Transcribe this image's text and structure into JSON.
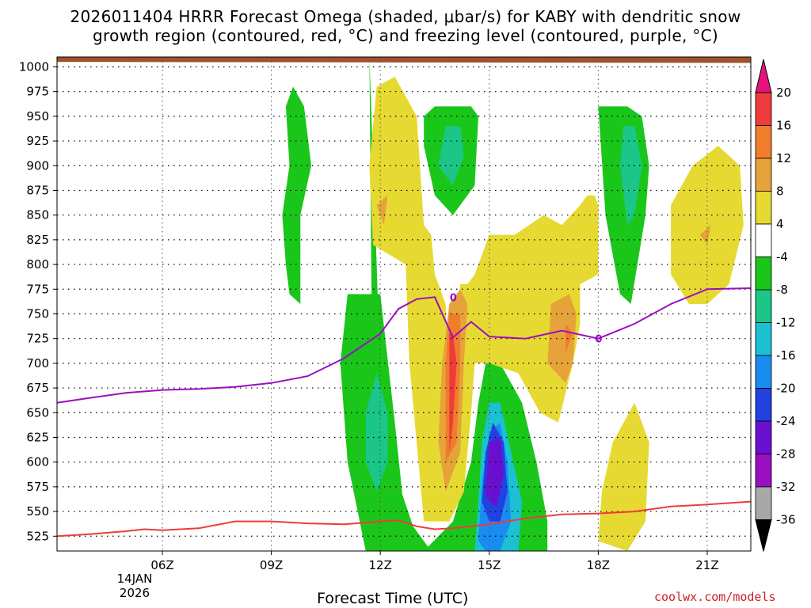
{
  "title_line1": "2026011404 HRRR Forecast Omega (shaded, μbar/s) for KABY with dendritic snow",
  "title_line2": "growth region (contoured, red, °C) and freezing level (contoured, purple, °C)",
  "xlabel": "Forecast Time (UTC)",
  "credit": "coolwx.com/models",
  "date_day": "14JAN",
  "date_year": "2026",
  "chart_data": {
    "type": "contour",
    "x_unit": "forecast hour UTC",
    "x_range": [
      3.1,
      22.2
    ],
    "y_range": [
      1010,
      510
    ],
    "x_ticks": [
      {
        "value": 6,
        "label": "06Z"
      },
      {
        "value": 9,
        "label": "09Z"
      },
      {
        "value": 12,
        "label": "12Z"
      },
      {
        "value": 15,
        "label": "15Z"
      },
      {
        "value": 18,
        "label": "18Z"
      },
      {
        "value": 21,
        "label": "21Z"
      }
    ],
    "y_ticks": [
      525,
      550,
      575,
      600,
      625,
      650,
      675,
      700,
      725,
      750,
      775,
      800,
      825,
      850,
      875,
      900,
      925,
      950,
      975,
      1000
    ],
    "colorbar": {
      "levels": [
        20,
        16,
        12,
        8,
        4,
        -4,
        -8,
        -12,
        -16,
        -20,
        -24,
        -28,
        -32,
        -36
      ],
      "bins": [
        {
          "from": 20,
          "to": null,
          "color": "#e8127d"
        },
        {
          "from": 16,
          "to": 20,
          "color": "#ef3b3b"
        },
        {
          "from": 12,
          "to": 16,
          "color": "#ef7d2b"
        },
        {
          "from": 8,
          "to": 12,
          "color": "#e6a33a"
        },
        {
          "from": 4,
          "to": 8,
          "color": "#e6d932"
        },
        {
          "from": -4,
          "to": 4,
          "color": "#ffffff"
        },
        {
          "from": -8,
          "to": -4,
          "color": "#1bc61b"
        },
        {
          "from": -12,
          "to": -8,
          "color": "#1bc688"
        },
        {
          "from": -16,
          "to": -12,
          "color": "#1bc1d2"
        },
        {
          "from": -20,
          "to": -16,
          "color": "#1a8cf0"
        },
        {
          "from": -24,
          "to": -20,
          "color": "#2141e0"
        },
        {
          "from": -28,
          "to": -24,
          "color": "#6a0fcf"
        },
        {
          "from": -32,
          "to": -28,
          "color": "#9a0fc0"
        },
        {
          "from": -36,
          "to": -32,
          "color": "#a8a8a8"
        },
        {
          "from": null,
          "to": -36,
          "color": "#000000"
        }
      ]
    },
    "omega_regions": [
      {
        "color": "#1bc61b",
        "points": [
          [
            11.7,
            1010
          ],
          [
            11.9,
            800
          ],
          [
            12.0,
            690
          ],
          [
            12.4,
            590
          ],
          [
            12.9,
            535
          ],
          [
            13.4,
            510
          ],
          [
            11.6,
            510
          ],
          [
            11.1,
            600
          ],
          [
            10.9,
            700
          ],
          [
            11.1,
            770
          ],
          [
            12.0,
            770
          ],
          [
            12.4,
            640
          ],
          [
            12.6,
            570
          ],
          [
            12.6,
            555
          ],
          [
            12.0,
            560
          ],
          [
            11.8,
            600
          ]
        ]
      },
      {
        "color": "#1bc61b",
        "points": [
          [
            13.2,
            510
          ],
          [
            14.0,
            540
          ],
          [
            14.5,
            600
          ],
          [
            14.7,
            660
          ],
          [
            14.9,
            700
          ],
          [
            15.3,
            700
          ],
          [
            15.9,
            660
          ],
          [
            16.3,
            600
          ],
          [
            16.6,
            540
          ],
          [
            16.6,
            510
          ]
        ]
      },
      {
        "color": "#1bc1d2",
        "points": [
          [
            14.6,
            510
          ],
          [
            14.7,
            560
          ],
          [
            14.8,
            620
          ],
          [
            15.0,
            660
          ],
          [
            15.3,
            660
          ],
          [
            15.6,
            610
          ],
          [
            15.9,
            560
          ],
          [
            15.8,
            510
          ]
        ]
      },
      {
        "color": "#1a8cf0",
        "points": [
          [
            14.7,
            520
          ],
          [
            14.8,
            580
          ],
          [
            15.0,
            630
          ],
          [
            15.3,
            640
          ],
          [
            15.5,
            600
          ],
          [
            15.6,
            540
          ],
          [
            15.3,
            510
          ],
          [
            14.9,
            510
          ]
        ]
      },
      {
        "color": "#2141e0",
        "points": [
          [
            14.8,
            560
          ],
          [
            14.9,
            610
          ],
          [
            15.1,
            640
          ],
          [
            15.4,
            620
          ],
          [
            15.5,
            570
          ],
          [
            15.3,
            540
          ],
          [
            15.0,
            540
          ]
        ]
      },
      {
        "color": "#6a0fcf",
        "points": [
          [
            14.9,
            570
          ],
          [
            15.0,
            620
          ],
          [
            15.3,
            625
          ],
          [
            15.4,
            590
          ],
          [
            15.2,
            555
          ],
          [
            15.0,
            560
          ]
        ]
      },
      {
        "color": "#1bc688",
        "points": [
          [
            11.6,
            600
          ],
          [
            11.6,
            650
          ],
          [
            11.9,
            690
          ],
          [
            12.2,
            650
          ],
          [
            12.2,
            600
          ],
          [
            11.9,
            570
          ]
        ]
      },
      {
        "color": "#1bc61b",
        "points": [
          [
            9.5,
            770
          ],
          [
            9.8,
            760
          ],
          [
            9.8,
            850
          ],
          [
            10.1,
            900
          ],
          [
            9.9,
            960
          ],
          [
            9.6,
            980
          ],
          [
            9.4,
            960
          ],
          [
            9.5,
            900
          ],
          [
            9.3,
            850
          ],
          [
            9.4,
            800
          ]
        ]
      },
      {
        "color": "#1bc61b",
        "points": [
          [
            13.2,
            920
          ],
          [
            13.5,
            870
          ],
          [
            14.0,
            850
          ],
          [
            14.6,
            880
          ],
          [
            14.7,
            950
          ],
          [
            14.5,
            960
          ],
          [
            13.5,
            960
          ],
          [
            13.2,
            950
          ]
        ]
      },
      {
        "color": "#1bc688",
        "points": [
          [
            13.6,
            900
          ],
          [
            14.0,
            880
          ],
          [
            14.3,
            910
          ],
          [
            14.2,
            940
          ],
          [
            13.8,
            940
          ]
        ]
      },
      {
        "color": "#1bc61b",
        "points": [
          [
            18.0,
            960
          ],
          [
            18.2,
            850
          ],
          [
            18.6,
            770
          ],
          [
            18.9,
            760
          ],
          [
            19.3,
            850
          ],
          [
            19.4,
            900
          ],
          [
            19.2,
            950
          ],
          [
            18.8,
            960
          ]
        ]
      },
      {
        "color": "#1bc688",
        "points": [
          [
            18.6,
            900
          ],
          [
            18.8,
            840
          ],
          [
            19.0,
            850
          ],
          [
            19.2,
            900
          ],
          [
            19.0,
            940
          ],
          [
            18.7,
            940
          ]
        ]
      }
    ],
    "sinking_regions": [
      {
        "color": "#e6d932",
        "points": [
          [
            12.4,
            990
          ],
          [
            13.0,
            950
          ],
          [
            13.2,
            840
          ],
          [
            13.4,
            830
          ],
          [
            13.5,
            790
          ],
          [
            13.8,
            760
          ],
          [
            13.9,
            640
          ],
          [
            14.0,
            580
          ],
          [
            13.9,
            540
          ],
          [
            13.2,
            540
          ],
          [
            13.0,
            620
          ],
          [
            12.8,
            700
          ],
          [
            12.7,
            800
          ],
          [
            11.8,
            820
          ],
          [
            11.7,
            900
          ],
          [
            11.9,
            980
          ]
        ]
      },
      {
        "color": "#e6d932",
        "points": [
          [
            13.9,
            540
          ],
          [
            14.3,
            570
          ],
          [
            14.5,
            650
          ],
          [
            14.6,
            700
          ],
          [
            15.0,
            700
          ],
          [
            15.8,
            690
          ],
          [
            16.4,
            650
          ],
          [
            16.9,
            640
          ],
          [
            17.3,
            700
          ],
          [
            17.5,
            740
          ],
          [
            17.5,
            780
          ],
          [
            18.0,
            790
          ],
          [
            18.0,
            860
          ],
          [
            17.9,
            870
          ],
          [
            17.7,
            870
          ],
          [
            17.5,
            860
          ],
          [
            17.0,
            840
          ],
          [
            16.5,
            850
          ],
          [
            15.7,
            830
          ],
          [
            15.0,
            830
          ],
          [
            14.6,
            790
          ],
          [
            14.4,
            780
          ],
          [
            14.2,
            780
          ]
        ]
      },
      {
        "color": "#e6a33a",
        "points": [
          [
            13.8,
            570
          ],
          [
            14.2,
            610
          ],
          [
            14.3,
            700
          ],
          [
            14.4,
            760
          ],
          [
            14.2,
            775
          ],
          [
            13.9,
            760
          ],
          [
            13.7,
            700
          ],
          [
            13.6,
            620
          ]
        ]
      },
      {
        "color": "#ef7d2b",
        "points": [
          [
            13.8,
            600
          ],
          [
            14.1,
            620
          ],
          [
            14.2,
            700
          ],
          [
            14.2,
            750
          ],
          [
            13.9,
            750
          ],
          [
            13.8,
            700
          ]
        ]
      },
      {
        "color": "#ef3b3b",
        "points": [
          [
            13.9,
            610
          ],
          [
            14.0,
            640
          ],
          [
            14.1,
            700
          ],
          [
            14.0,
            730
          ],
          [
            13.9,
            730
          ],
          [
            13.9,
            680
          ]
        ]
      },
      {
        "color": "#e6a33a",
        "points": [
          [
            16.6,
            700
          ],
          [
            17.1,
            680
          ],
          [
            17.3,
            700
          ],
          [
            17.4,
            750
          ],
          [
            17.2,
            770
          ],
          [
            16.7,
            760
          ]
        ]
      },
      {
        "color": "#ef7d2b",
        "points": [
          [
            17.1,
            710
          ],
          [
            17.3,
            730
          ],
          [
            17.1,
            740
          ]
        ]
      },
      {
        "color": "#e6a33a",
        "points": [
          [
            11.9,
            860
          ],
          [
            12.1,
            840
          ],
          [
            12.2,
            870
          ]
        ]
      },
      {
        "color": "#e6d932",
        "points": [
          [
            18.0,
            520
          ],
          [
            18.8,
            510
          ],
          [
            19.3,
            540
          ],
          [
            19.4,
            620
          ],
          [
            19.0,
            660
          ],
          [
            18.4,
            620
          ],
          [
            18.1,
            570
          ]
        ]
      },
      {
        "color": "#e6d932",
        "points": [
          [
            20.0,
            790
          ],
          [
            20.5,
            760
          ],
          [
            21.0,
            760
          ],
          [
            21.6,
            780
          ],
          [
            22.0,
            840
          ],
          [
            21.9,
            900
          ],
          [
            21.3,
            920
          ],
          [
            20.6,
            900
          ],
          [
            20.0,
            860
          ]
        ]
      },
      {
        "color": "#e6a33a",
        "points": [
          [
            20.8,
            830
          ],
          [
            21.0,
            820
          ],
          [
            21.1,
            840
          ]
        ]
      }
    ],
    "dgz_line": {
      "color": "#ef3b3b",
      "x": [
        3.1,
        4.0,
        5.0,
        5.5,
        6.0,
        7.0,
        8.0,
        9.0,
        10.0,
        11.0,
        12.0,
        12.5,
        13.0,
        13.5,
        14.0,
        15.0,
        16.0,
        17.0,
        18.0,
        19.0,
        20.0,
        21.0,
        22.2
      ],
      "y": [
        525,
        527,
        530,
        532,
        531,
        533,
        540,
        540,
        538,
        537,
        540,
        541,
        535,
        532,
        533,
        537,
        543,
        547,
        548,
        550,
        555,
        557,
        560
      ]
    },
    "freezing_line": {
      "color": "#9a0fc0",
      "label": "0",
      "x": [
        3.1,
        4.0,
        5.0,
        6.0,
        7.0,
        8.0,
        9.0,
        10.0,
        11.0,
        12.0,
        12.5,
        13.0,
        13.5,
        14.0,
        14.5,
        15.0,
        16.0,
        17.0,
        18.0,
        19.0,
        20.0,
        21.0,
        22.2
      ],
      "y": [
        660,
        665,
        670,
        673,
        674,
        676,
        680,
        687,
        705,
        730,
        755,
        765,
        767,
        726,
        742,
        727,
        725,
        733,
        725,
        740,
        760,
        775,
        776
      ]
    },
    "terrain": {
      "color": "#a0522d",
      "top_hPa": [
        1005,
        1004
      ]
    }
  }
}
